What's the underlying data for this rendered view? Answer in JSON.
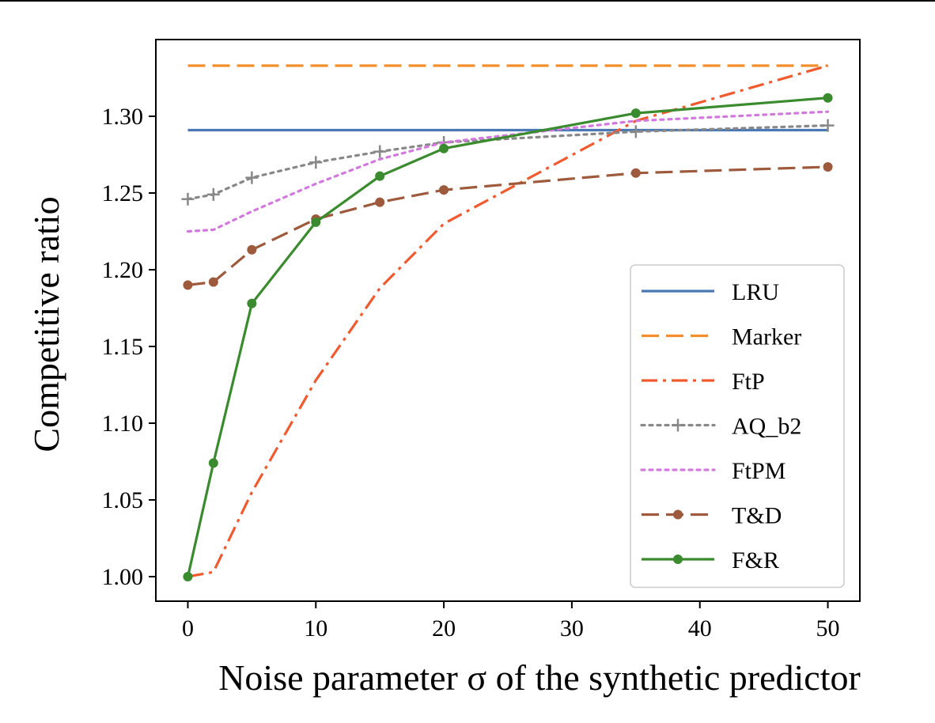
{
  "chart_data": {
    "type": "line",
    "title": "",
    "xlabel": "Noise parameter σ of the synthetic predictor",
    "ylabel": "Competitive ratio",
    "xlim": [
      -2.5,
      52.5
    ],
    "ylim": [
      0.984,
      1.35
    ],
    "xticks": [
      0,
      10,
      20,
      30,
      40,
      50
    ],
    "xtick_labels": [
      "0",
      "10",
      "20",
      "30",
      "40",
      "50"
    ],
    "yticks": [
      1.0,
      1.05,
      1.1,
      1.15,
      1.2,
      1.25,
      1.3
    ],
    "ytick_labels": [
      "1.00",
      "1.05",
      "1.10",
      "1.15",
      "1.20",
      "1.25",
      "1.30"
    ],
    "grid": false,
    "legend_position": "lower-right",
    "series": [
      {
        "name": "LRU",
        "color": "#4a78b5",
        "dash": "solid",
        "marker": "none",
        "x": [
          0,
          50
        ],
        "values": [
          1.291,
          1.291
        ]
      },
      {
        "name": "Marker",
        "color": "#f28e2b",
        "dash": "dashed",
        "marker": "none",
        "x": [
          0,
          50
        ],
        "values": [
          1.333,
          1.333
        ]
      },
      {
        "name": "FtP",
        "color": "#ef5a2f",
        "dash": "dashdot",
        "marker": "none",
        "x": [
          0,
          2,
          5,
          10,
          15,
          20,
          35,
          50
        ],
        "values": [
          1.0,
          1.003,
          1.055,
          1.128,
          1.188,
          1.23,
          1.297,
          1.333
        ]
      },
      {
        "name": "AQ_b2",
        "color": "#888888",
        "dash": "dotted",
        "marker": "plus",
        "x": [
          0,
          2,
          5,
          10,
          15,
          20,
          35,
          50
        ],
        "values": [
          1.246,
          1.249,
          1.26,
          1.27,
          1.277,
          1.283,
          1.29,
          1.294
        ]
      },
      {
        "name": "FtPM",
        "color": "#d279dd",
        "dash": "dotted",
        "marker": "none",
        "x": [
          0,
          2,
          5,
          10,
          15,
          20,
          35,
          50
        ],
        "values": [
          1.225,
          1.226,
          1.238,
          1.256,
          1.272,
          1.283,
          1.297,
          1.303
        ]
      },
      {
        "name": "T&D",
        "color": "#9e5a3c",
        "dash": "dashed",
        "marker": "dot",
        "x": [
          0,
          2,
          5,
          10,
          15,
          20,
          35,
          50
        ],
        "values": [
          1.19,
          1.192,
          1.213,
          1.233,
          1.244,
          1.252,
          1.263,
          1.267
        ]
      },
      {
        "name": "F&R",
        "color": "#3a8a2e",
        "dash": "solid",
        "marker": "dot",
        "x": [
          0,
          2,
          5,
          10,
          15,
          20,
          35,
          50
        ],
        "values": [
          1.0,
          1.074,
          1.178,
          1.231,
          1.261,
          1.279,
          1.302,
          1.312
        ]
      }
    ]
  }
}
